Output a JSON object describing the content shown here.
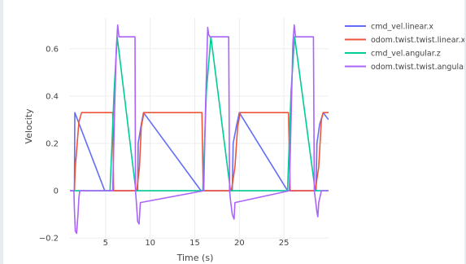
{
  "chart_data": {
    "type": "line",
    "xlabel": "Time (s)",
    "ylabel": "Velocity",
    "xlim": [
      1,
      30
    ],
    "ylim": [
      -0.22,
      0.73
    ],
    "x_ticks": [
      5,
      10,
      15,
      20,
      25
    ],
    "y_ticks": [
      -0.2,
      0,
      0.2,
      0.4,
      0.6
    ],
    "y_tick_labels": [
      "−0.2",
      "0",
      "0.2",
      "0.4",
      "0.6"
    ],
    "grid": true,
    "legend_position": "right",
    "series": [
      {
        "name": "cmd_vel.linear.x",
        "color": "#636efa",
        "x": [
          1.5,
          1.55,
          4.9,
          5.1,
          5.9,
          8.6,
          8.65,
          9.0,
          9.25,
          15.7,
          15.9,
          16.4,
          19.2,
          19.3,
          19.7,
          20.0,
          25.4,
          25.6,
          26.2,
          28.6,
          28.7,
          29.0,
          29.4,
          30
        ],
        "y": [
          0.0,
          0.33,
          0.0,
          0.0,
          0.0,
          0.0,
          0.2,
          0.28,
          0.33,
          0.0,
          0.0,
          0.0,
          0.0,
          0.2,
          0.28,
          0.33,
          0.0,
          0.0,
          0.0,
          0.0,
          0.2,
          0.28,
          0.33,
          0.3
        ]
      },
      {
        "name": "odom.twist.twist.linear.x",
        "color": "#ef553b",
        "x": [
          1.5,
          1.6,
          2.0,
          2.3,
          5.8,
          5.9,
          6.2,
          8.5,
          8.8,
          9.0,
          9.3,
          15.8,
          15.95,
          16.3,
          19.1,
          19.5,
          19.8,
          20.1,
          25.5,
          25.7,
          26.1,
          28.5,
          28.9,
          29.2,
          29.4,
          30
        ],
        "y": [
          0.0,
          0.1,
          0.29,
          0.33,
          0.33,
          0.0,
          0.0,
          0.0,
          0.1,
          0.27,
          0.33,
          0.33,
          0.0,
          0.0,
          0.0,
          0.1,
          0.27,
          0.33,
          0.33,
          0.0,
          0.0,
          0.0,
          0.1,
          0.3,
          0.33,
          0.33
        ]
      },
      {
        "name": "cmd_vel.angular.z",
        "color": "#00cc96",
        "x": [
          1.0,
          5.5,
          5.95,
          6.3,
          8.4,
          8.6,
          15.9,
          16.3,
          16.8,
          19.0,
          19.3,
          25.4,
          25.8,
          26.2,
          28.5,
          28.7,
          30
        ],
        "y": [
          0.0,
          0.0,
          0.42,
          0.65,
          0.0,
          0.0,
          0.0,
          0.42,
          0.65,
          0.0,
          0.0,
          0.0,
          0.42,
          0.65,
          0.0,
          0.0,
          0.0
        ]
      },
      {
        "name": "odom.twist.twist.angular.z",
        "color": "#ab63fa",
        "x": [
          1.0,
          1.45,
          1.5,
          1.6,
          1.75,
          1.9,
          2.0,
          2.1,
          5.8,
          6.0,
          6.2,
          6.35,
          6.5,
          8.3,
          8.35,
          8.45,
          8.6,
          8.75,
          8.9,
          16.0,
          16.2,
          16.45,
          16.55,
          16.7,
          18.8,
          18.9,
          19.0,
          19.2,
          19.4,
          19.5,
          25.6,
          25.8,
          26.0,
          26.15,
          26.3,
          28.3,
          28.4,
          28.5,
          28.7,
          28.8,
          28.9,
          29.2,
          30
        ],
        "y": [
          0.0,
          0.0,
          -0.08,
          -0.17,
          -0.18,
          -0.1,
          -0.03,
          0.0,
          0.0,
          0.33,
          0.6,
          0.7,
          0.65,
          0.65,
          0.0,
          -0.05,
          -0.13,
          -0.14,
          -0.05,
          0.0,
          0.35,
          0.69,
          0.66,
          0.65,
          0.65,
          0.0,
          -0.04,
          -0.1,
          -0.12,
          -0.05,
          0.0,
          0.3,
          0.62,
          0.7,
          0.65,
          0.65,
          0.0,
          -0.03,
          -0.09,
          -0.11,
          -0.05,
          0.0,
          0.0
        ]
      }
    ]
  }
}
